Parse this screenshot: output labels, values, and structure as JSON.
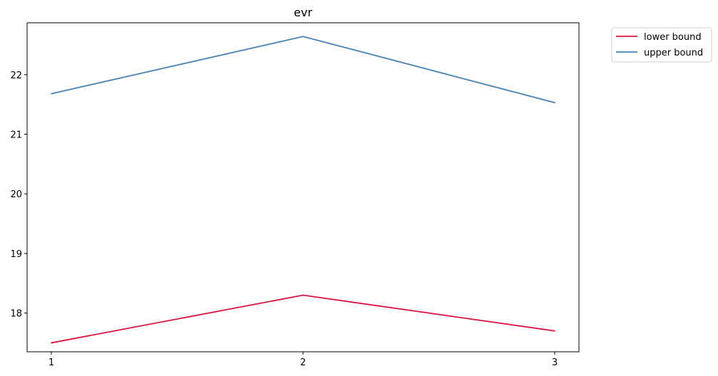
{
  "chart_data": {
    "type": "line",
    "title": "evr",
    "xlabel": "",
    "ylabel": "",
    "x": [
      1,
      2,
      3
    ],
    "x_ticks": [
      "1",
      "2",
      "3"
    ],
    "y_ticks": [
      "18",
      "19",
      "20",
      "21",
      "22"
    ],
    "ylim": [
      17.35,
      22.87
    ],
    "grid": false,
    "legend_position": "outside-top-right",
    "series": [
      {
        "name": "lower bound",
        "values": [
          17.5,
          18.3,
          17.7
        ],
        "color": "#dc143c"
      },
      {
        "name": "upper bound",
        "values": [
          21.68,
          22.64,
          21.53
        ],
        "color": "#4682b4"
      }
    ]
  }
}
